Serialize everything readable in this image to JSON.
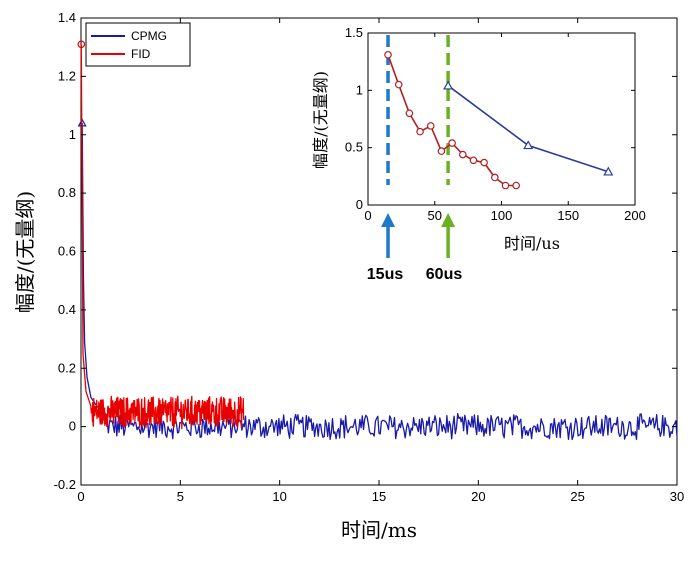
{
  "chart_data": [
    {
      "type": "line",
      "title": "",
      "xlabel": "时间/ms",
      "ylabel": "幅度/(无量纲)",
      "xlim": [
        0,
        30
      ],
      "ylim": [
        -0.2,
        1.4
      ],
      "xticks": [
        "0",
        "5",
        "10",
        "15",
        "20",
        "25",
        "30"
      ],
      "yticks": [
        "-0.2",
        "0",
        "0.2",
        "0.4",
        "0.6",
        "0.8",
        "1",
        "1.2",
        "1.4"
      ],
      "grid": false,
      "legend_position": "top-left",
      "series": [
        {
          "name": "CPMG",
          "color": "#1a1aa8",
          "marker": "triangle",
          "first_point": {
            "x": 0.06,
            "y": 1.04
          },
          "decay": [
            {
              "x": 0.06,
              "y": 1.04
            },
            {
              "x": 0.12,
              "y": 0.52
            },
            {
              "x": 0.18,
              "y": 0.29
            },
            {
              "x": 0.3,
              "y": 0.17
            },
            {
              "x": 0.5,
              "y": 0.1
            },
            {
              "x": 0.8,
              "y": 0.07
            },
            {
              "x": 1.2,
              "y": 0.05
            }
          ],
          "noise_range": {
            "x": [
              1.2,
              30
            ],
            "mean": 0.0,
            "amplitude": 0.04
          }
        },
        {
          "name": "FID",
          "color": "#e80000",
          "marker": "circle",
          "first_point": {
            "x": 0.015,
            "y": 1.31
          },
          "decay": [
            {
              "x": 0.015,
              "y": 1.31
            },
            {
              "x": 0.1,
              "y": 0.25
            },
            {
              "x": 0.25,
              "y": 0.12
            },
            {
              "x": 0.5,
              "y": 0.07
            }
          ],
          "noise_range": {
            "x": [
              0.5,
              8.2
            ],
            "mean": 0.05,
            "amplitude": 0.05
          }
        }
      ]
    },
    {
      "type": "line",
      "title": "",
      "xlabel": "时间/us",
      "ylabel": "幅度/(无量纲)",
      "xlim": [
        0,
        200
      ],
      "ylim": [
        0,
        1.5
      ],
      "xticks": [
        "0",
        "50",
        "100",
        "150",
        "200"
      ],
      "yticks": [
        "0",
        "0.5",
        "1",
        "1.5"
      ],
      "grid": false,
      "series": [
        {
          "name": "FID",
          "color": "#b02020",
          "marker": "circle",
          "x": [
            15,
            23,
            31,
            39,
            47,
            55,
            63,
            71,
            79,
            87,
            95,
            103,
            111
          ],
          "y": [
            1.31,
            1.05,
            0.8,
            0.64,
            0.69,
            0.47,
            0.54,
            0.44,
            0.39,
            0.37,
            0.24,
            0.17,
            0.17
          ]
        },
        {
          "name": "CPMG",
          "color": "#2a3b9c",
          "marker": "triangle",
          "x": [
            60,
            120,
            180
          ],
          "y": [
            1.04,
            0.52,
            0.29
          ]
        }
      ],
      "markers": [
        {
          "x": 15,
          "label": "15us",
          "color": "#1f78c8"
        },
        {
          "x": 60,
          "label": "60us",
          "color": "#6ab023"
        }
      ]
    }
  ]
}
